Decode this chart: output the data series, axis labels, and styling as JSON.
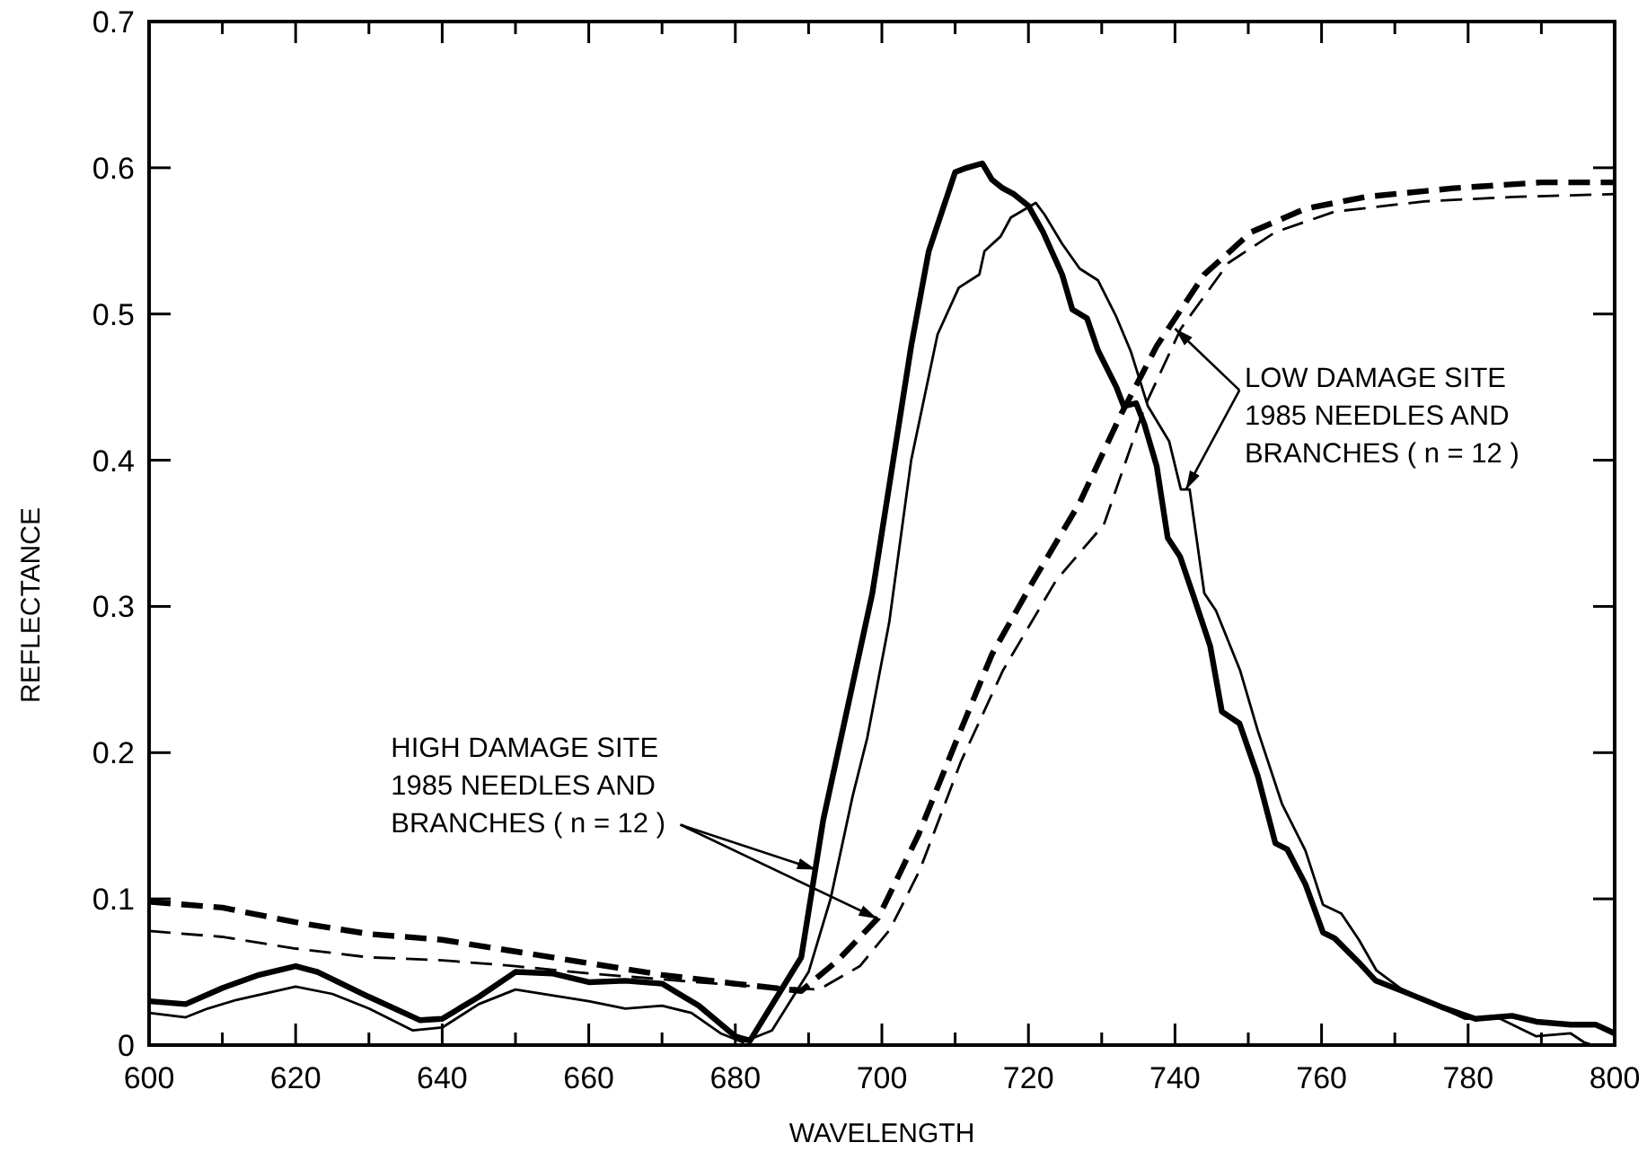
{
  "chart_data": {
    "type": "line",
    "xlabel": "WAVELENGTH",
    "ylabel": "REFLECTANCE",
    "xlim": [
      600,
      800
    ],
    "ylim": [
      0,
      0.7
    ],
    "xticks": [
      600,
      {
        "value": 610,
        "label": null
      },
      620,
      {
        "value": 630,
        "label": null
      },
      640,
      {
        "value": 650,
        "label": null
      },
      660,
      {
        "value": 670,
        "label": null
      },
      680,
      {
        "value": 690,
        "label": null
      },
      700,
      {
        "value": 710,
        "label": null
      },
      720,
      {
        "value": 730,
        "label": null
      },
      740,
      {
        "value": 750,
        "label": null
      },
      760,
      {
        "value": 770,
        "label": null
      },
      780,
      {
        "value": 790,
        "label": null
      },
      800
    ],
    "yticks": [
      0,
      0.1,
      0.2,
      0.3,
      0.4,
      0.5,
      0.6,
      0.7
    ],
    "annotations": [
      {
        "text": "HIGH DAMAGE SITE\n1985 NEEDLES AND\nBRANCHES ( n = 12 )",
        "x": 691,
        "y": 0.12
      },
      {
        "text": "LOW DAMAGE SITE\n1985 NEEDLES AND\nBRANCHES ( n = 12 )",
        "x": 740,
        "y": 0.49
      }
    ],
    "series": [
      {
        "color": "#000000",
        "line_style": "solid",
        "x": [
          600,
          605,
          610,
          615,
          620,
          623,
          630,
          637,
          640,
          645,
          650,
          655,
          660,
          665,
          670,
          675,
          680,
          682,
          689,
          692,
          698.7,
          704,
          706.4,
          710,
          711.6,
          713.7,
          715,
          716.5,
          718,
          720,
          722,
          724.6,
          726,
          728,
          729.5,
          732,
          733,
          734.7,
          735.8,
          737.5,
          739,
          740.7,
          742.4,
          744.8,
          746.4,
          748.8,
          751.3,
          753.7,
          755.3,
          757.8,
          760.2,
          761.8,
          765,
          767.4,
          771.5,
          776.4,
          781,
          786,
          789.3,
          794,
          797.4,
          800
        ],
        "values": [
          0.03,
          0.028,
          0.039,
          0.048,
          0.054,
          0.05,
          0.033,
          0.017,
          0.018,
          0.033,
          0.05,
          0.049,
          0.043,
          0.044,
          0.042,
          0.027,
          0.006,
          0.003,
          0.06,
          0.154,
          0.309,
          0.478,
          0.543,
          0.597,
          0.6,
          0.603,
          0.592,
          0.586,
          0.582,
          0.574,
          0.556,
          0.527,
          0.503,
          0.497,
          0.475,
          0.45,
          0.437,
          0.439,
          0.425,
          0.396,
          0.347,
          0.334,
          0.309,
          0.273,
          0.228,
          0.22,
          0.184,
          0.138,
          0.134,
          0.11,
          0.077,
          0.073,
          0.057,
          0.044,
          0.036,
          0.026,
          0.018,
          0.02,
          0.016,
          0.014,
          0.014,
          0.008
        ]
      },
      {
        "color": "#000000",
        "line_style": "solid",
        "x": [
          600,
          605,
          608,
          612,
          620,
          625,
          630,
          636,
          640,
          645,
          650,
          655,
          660,
          665,
          670,
          674,
          678,
          681,
          685,
          690,
          693,
          696,
          698,
          701,
          704,
          707.6,
          710.5,
          713.3,
          714,
          716.2,
          717.6,
          721,
          722.2,
          724.6,
          727,
          729.5,
          732,
          734,
          736.3,
          739.2,
          740.8,
          742,
          744,
          745.6,
          748.9,
          751.3,
          754.6,
          757.8,
          760.2,
          762.7,
          765.1,
          767.5,
          770.7,
          774.8,
          779.6,
          784.4,
          789.3,
          794,
          795.8,
          797
        ],
        "values": [
          0.022,
          0.019,
          0.025,
          0.031,
          0.04,
          0.035,
          0.025,
          0.01,
          0.012,
          0.028,
          0.038,
          0.034,
          0.03,
          0.025,
          0.027,
          0.022,
          0.008,
          0.002,
          0.01,
          0.05,
          0.1,
          0.17,
          0.21,
          0.289,
          0.4,
          0.486,
          0.518,
          0.527,
          0.543,
          0.553,
          0.566,
          0.576,
          0.568,
          0.548,
          0.531,
          0.523,
          0.498,
          0.474,
          0.437,
          0.413,
          0.38,
          0.38,
          0.309,
          0.297,
          0.256,
          0.215,
          0.165,
          0.133,
          0.096,
          0.09,
          0.072,
          0.051,
          0.039,
          0.029,
          0.018,
          0.018,
          0.006,
          0.008,
          0.002,
          0
        ]
      },
      {
        "color": "#000000",
        "line_style": "dashed",
        "x": [
          600,
          610,
          620,
          630,
          640,
          650,
          660,
          670,
          680,
          689,
          694,
          699.5,
          705,
          710,
          715,
          720.5,
          727,
          732.7,
          737.5,
          744,
          750.4,
          757.8,
          765.9,
          778,
          790,
          800
        ],
        "values": [
          0.098,
          0.094,
          0.084,
          0.076,
          0.072,
          0.064,
          0.056,
          0.048,
          0.042,
          0.037,
          0.058,
          0.087,
          0.144,
          0.206,
          0.267,
          0.316,
          0.371,
          0.432,
          0.478,
          0.527,
          0.556,
          0.572,
          0.58,
          0.586,
          0.59,
          0.59
        ]
      },
      {
        "color": "#000000",
        "line_style": "dashed",
        "x": [
          600,
          610,
          620,
          630,
          640,
          650,
          660,
          670,
          680,
          691.4,
          697,
          701.1,
          705.2,
          710.8,
          716.5,
          723.8,
          730.3,
          735.9,
          740.8,
          747.3,
          753.7,
          761.8,
          774,
          786,
          800
        ],
        "values": [
          0.078,
          0.074,
          0.066,
          0.06,
          0.058,
          0.054,
          0.049,
          0.045,
          0.041,
          0.038,
          0.054,
          0.079,
          0.12,
          0.194,
          0.256,
          0.318,
          0.356,
          0.437,
          0.49,
          0.535,
          0.556,
          0.57,
          0.577,
          0.58,
          0.582
        ]
      }
    ]
  }
}
